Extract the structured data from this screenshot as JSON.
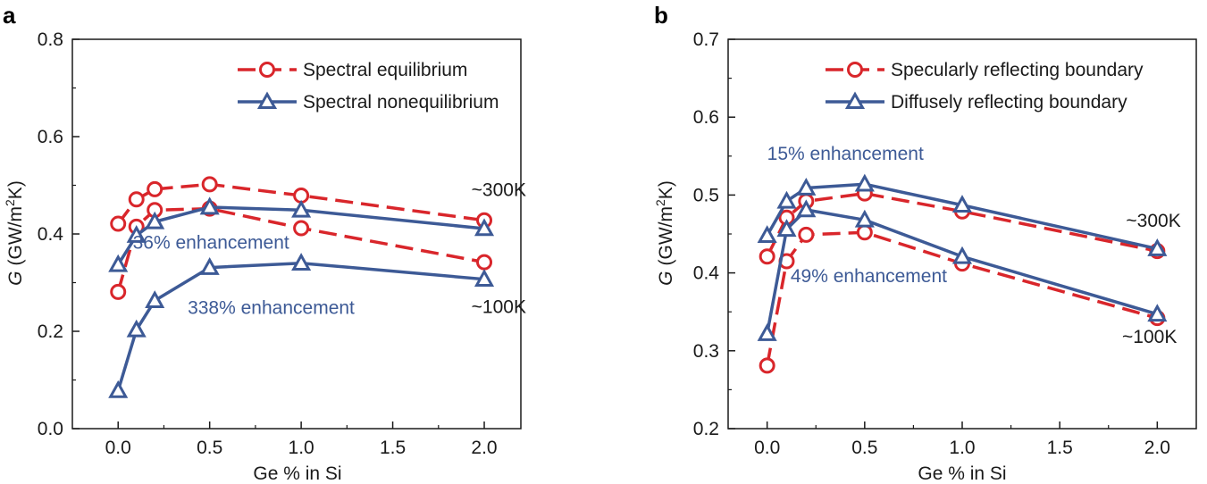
{
  "colors": {
    "equilibrium": "#d9262b",
    "nonequilibrium": "#3d5a96",
    "axis": "#1a1a1a"
  },
  "chart_data": [
    {
      "type": "line",
      "panel": "a",
      "xlabel": "Ge % in Si",
      "ylabel_main": "G",
      "ylabel_rest": "(GW/m",
      "ylabel_sup": "2",
      "ylabel_end": "K)",
      "xlim": [
        -0.25,
        2.2
      ],
      "ylim": [
        0.0,
        0.8
      ],
      "xticks": [
        0.0,
        0.5,
        1.0,
        1.5,
        2.0
      ],
      "xtick_labels": [
        "0.0",
        "0.5",
        "1.0",
        "1.5",
        "2.0"
      ],
      "yticks": [
        0.0,
        0.2,
        0.4,
        0.6,
        0.8
      ],
      "ytick_labels": [
        "0.0",
        "0.2",
        "0.4",
        "0.6",
        "0.8"
      ],
      "legend": [
        "Spectral equilibrium",
        "Spectral nonequilibrium"
      ],
      "legend_position": "top-right",
      "series": [
        {
          "name": "Spectral equilibrium ~300K",
          "style": "dashed-circle",
          "x": [
            0.0,
            0.1,
            0.2,
            0.5,
            1.0,
            2.0
          ],
          "y": [
            0.421,
            0.471,
            0.492,
            0.502,
            0.479,
            0.428
          ]
        },
        {
          "name": "Spectral equilibrium ~100K",
          "style": "dashed-circle",
          "x": [
            0.0,
            0.1,
            0.2,
            0.5,
            1.0,
            2.0
          ],
          "y": [
            0.281,
            0.415,
            0.449,
            0.452,
            0.412,
            0.342
          ]
        },
        {
          "name": "Spectral nonequilibrium ~300K",
          "style": "solid-triangle",
          "x": [
            0.0,
            0.1,
            0.2,
            0.5,
            1.0,
            2.0
          ],
          "y": [
            0.337,
            0.397,
            0.425,
            0.455,
            0.449,
            0.411
          ]
        },
        {
          "name": "Spectral nonequilibrium ~100K",
          "style": "solid-triangle",
          "x": [
            0.0,
            0.1,
            0.2,
            0.5,
            1.0,
            2.0
          ],
          "y": [
            0.078,
            0.203,
            0.263,
            0.331,
            0.34,
            0.307
          ]
        }
      ],
      "annotations": [
        {
          "text": "~300K",
          "x": 1.93,
          "y": 0.478,
          "color": "axis"
        },
        {
          "text": "~100K",
          "x": 1.93,
          "y": 0.238,
          "color": "axis"
        },
        {
          "text": "36% enhancement",
          "x": 0.08,
          "y": 0.37,
          "color": "nonequilibrium"
        },
        {
          "text": "338% enhancement",
          "x": 0.38,
          "y": 0.236,
          "color": "nonequilibrium"
        }
      ]
    },
    {
      "type": "line",
      "panel": "b",
      "xlabel": "Ge % in Si",
      "ylabel_main": "G",
      "ylabel_rest": "(GW/m",
      "ylabel_sup": "2",
      "ylabel_end": "K)",
      "xlim": [
        -0.2,
        2.2
      ],
      "ylim": [
        0.2,
        0.7
      ],
      "xticks": [
        0.0,
        0.5,
        1.0,
        1.5,
        2.0
      ],
      "xtick_labels": [
        "0.0",
        "0.5",
        "1.0",
        "1.5",
        "2.0"
      ],
      "yticks": [
        0.2,
        0.3,
        0.4,
        0.5,
        0.6,
        0.7
      ],
      "ytick_labels": [
        "0.2",
        "0.3",
        "0.4",
        "0.5",
        "0.6",
        "0.7"
      ],
      "legend": [
        "Specularly reflecting boundary",
        "Diffusely reflecting boundary"
      ],
      "legend_position": "top-right",
      "series": [
        {
          "name": "Specularly reflecting boundary ~300K",
          "style": "dashed-circle",
          "x": [
            0.0,
            0.1,
            0.2,
            0.5,
            1.0,
            2.0
          ],
          "y": [
            0.421,
            0.471,
            0.492,
            0.502,
            0.479,
            0.428
          ]
        },
        {
          "name": "Specularly reflecting boundary ~100K",
          "style": "dashed-circle",
          "x": [
            0.0,
            0.1,
            0.2,
            0.5,
            1.0,
            2.0
          ],
          "y": [
            0.281,
            0.415,
            0.449,
            0.452,
            0.412,
            0.342
          ]
        },
        {
          "name": "Diffusely reflecting boundary ~300K",
          "style": "solid-triangle",
          "x": [
            0.0,
            0.1,
            0.2,
            0.5,
            1.0,
            2.0
          ],
          "y": [
            0.448,
            0.492,
            0.509,
            0.514,
            0.487,
            0.431
          ]
        },
        {
          "name": "Diffusely reflecting boundary ~100K",
          "style": "solid-triangle",
          "x": [
            0.0,
            0.1,
            0.2,
            0.5,
            1.0,
            2.0
          ],
          "y": [
            0.322,
            0.456,
            0.481,
            0.468,
            0.421,
            0.347
          ]
        }
      ],
      "annotations": [
        {
          "text": "15% enhancement",
          "x": 0.0,
          "y": 0.545,
          "color": "nonequilibrium"
        },
        {
          "text": "~300K",
          "x": 1.84,
          "y": 0.459,
          "color": "axis"
        },
        {
          "text": "49% enhancement",
          "x": 0.12,
          "y": 0.388,
          "color": "nonequilibrium"
        },
        {
          "text": "~100K",
          "x": 1.82,
          "y": 0.31,
          "color": "axis"
        }
      ]
    }
  ]
}
